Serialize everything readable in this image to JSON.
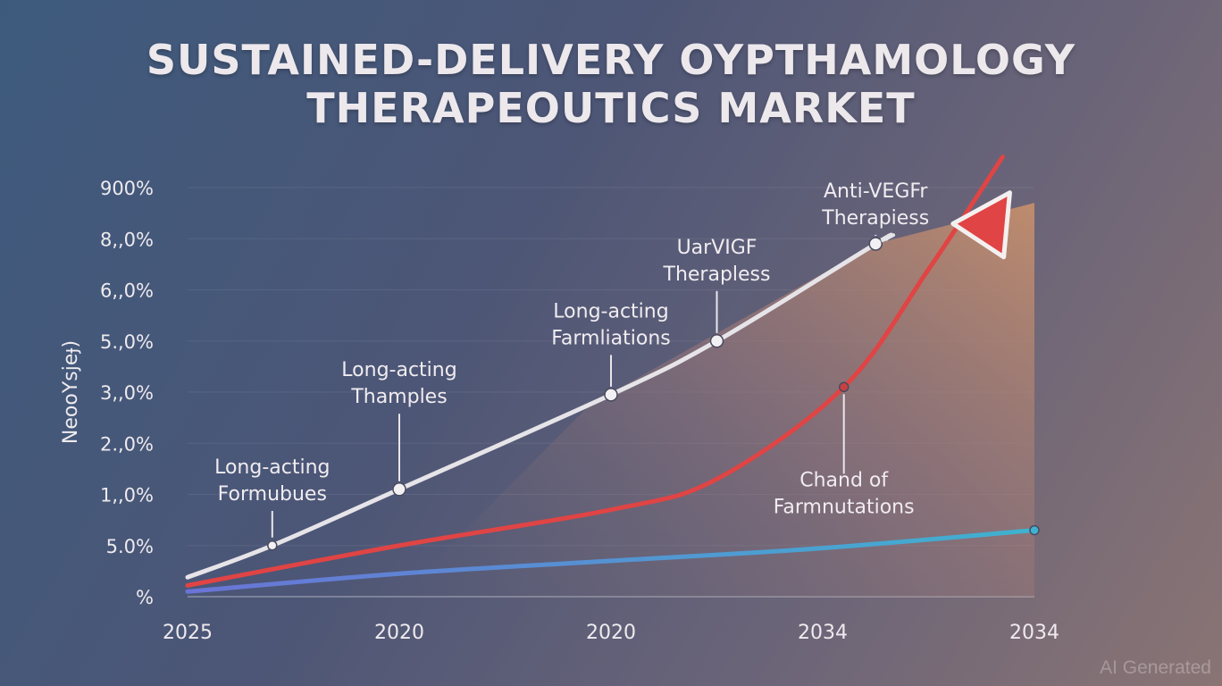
{
  "title_line1": "SUSTAINED-DELIVERY OYPTHAMOLOGY",
  "title_line2": "THERAPEOUTICS MARKET",
  "watermark": "AI Generated",
  "chart_data": {
    "type": "line",
    "ylabel": "NeooYsjeɟ)",
    "y_ticks": [
      "900%",
      "8,,0%",
      "6,,0%",
      "5.,0%",
      "3,,0%",
      "2.,0%",
      "1,,0%",
      "5.0%",
      "%"
    ],
    "x_ticks": [
      "2025",
      "2020",
      "2020",
      "2034",
      "2034"
    ],
    "x_range": [
      0,
      4
    ],
    "y_range": [
      0,
      8
    ],
    "grid": true,
    "colors": {
      "white_series": "#e6e4e8",
      "red_series": "#e04444",
      "blue_series_start": "#6a74d6",
      "blue_series_end": "#3fb2cf",
      "area_top": "#c8906c"
    },
    "series": [
      {
        "color": "white",
        "points": [
          [
            0,
            0.38
          ],
          [
            0.4,
            1.0
          ],
          [
            1.0,
            2.1
          ],
          [
            2.0,
            3.95
          ],
          [
            2.5,
            5.0
          ],
          [
            3.25,
            6.9
          ],
          [
            3.3,
            7.0
          ]
        ],
        "markers": [
          [
            0.4,
            1.0
          ],
          [
            1.0,
            2.1
          ],
          [
            2.0,
            3.95
          ],
          [
            2.5,
            5.0
          ],
          [
            3.25,
            6.9
          ]
        ]
      },
      {
        "color": "red",
        "points": [
          [
            0,
            0.22
          ],
          [
            1.0,
            1.0
          ],
          [
            2.0,
            1.7
          ],
          [
            2.5,
            2.3
          ],
          [
            3.1,
            4.1
          ],
          [
            3.5,
            6.4
          ],
          [
            3.85,
            8.6
          ]
        ],
        "markers": [
          [
            3.1,
            4.1
          ]
        ]
      },
      {
        "color": "blue",
        "points": [
          [
            0,
            0.1
          ],
          [
            1.0,
            0.45
          ],
          [
            2.0,
            0.7
          ],
          [
            3.0,
            0.95
          ],
          [
            4.0,
            1.3
          ]
        ],
        "markers": [
          [
            4.0,
            1.3
          ]
        ]
      }
    ],
    "annotations": [
      {
        "lines": [
          "Long-acting",
          "Formubues"
        ],
        "x": 0.4,
        "y": 1.0,
        "label_y": 2.55
      },
      {
        "lines": [
          "Long-acting",
          "Thamples"
        ],
        "x": 1.0,
        "y": 2.1,
        "label_y": 4.45
      },
      {
        "lines": [
          "Long-acting",
          "Farmliations"
        ],
        "x": 2.0,
        "y": 3.95,
        "label_y": 5.6
      },
      {
        "lines": [
          "UarVIGF",
          "Therapless"
        ],
        "x": 2.5,
        "y": 5.0,
        "label_y": 6.85
      },
      {
        "lines": [
          "Anti-VEGFr",
          "Therapiess"
        ],
        "x": 3.25,
        "y": 6.9,
        "label_y": 7.95
      },
      {
        "lines": [
          "Chand of",
          "Farmnutations"
        ],
        "x": 3.1,
        "y": 4.1,
        "label_y": 2.3,
        "below": true
      }
    ]
  }
}
